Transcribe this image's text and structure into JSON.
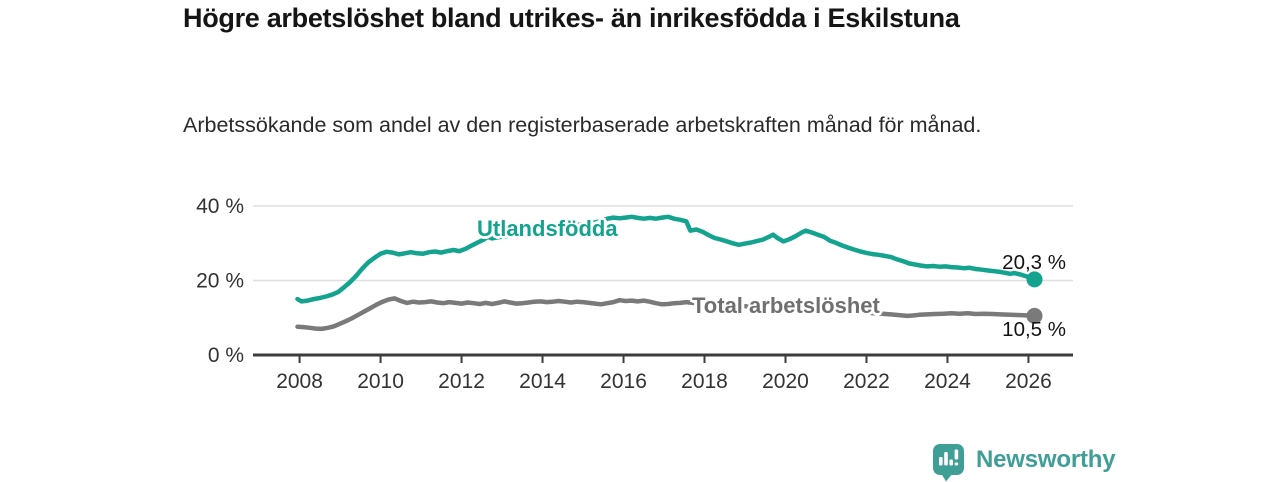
{
  "header": {
    "title": "Högre arbetslöshet bland utrikes- än inrikesfödda i Eskilstuna",
    "subtitle": "Arbetssökande som andel av den registerbaserade arbetskraften månad för månad."
  },
  "chart_data": {
    "type": "line",
    "title": "Högre arbetslöshet bland utrikes- än inrikesfödda i Eskilstuna",
    "subtitle": "Arbetssökande som andel av den registerbaserade arbetskraften månad för månad.",
    "xlabel": "",
    "ylabel": "",
    "x_unit": "year (monthly data)",
    "y_unit": "%",
    "xlim": [
      2006.85,
      2027.1
    ],
    "ylim": [
      0,
      44.3
    ],
    "grid": "horizontal",
    "legend_position": "inline-labels",
    "yticks": [
      {
        "value": 0,
        "label": "0 %"
      },
      {
        "value": 20,
        "label": "20 %"
      },
      {
        "value": 40,
        "label": "40 %"
      }
    ],
    "xticks": [
      {
        "value": 2008,
        "label": "2008"
      },
      {
        "value": 2010,
        "label": "2010"
      },
      {
        "value": 2012,
        "label": "2012"
      },
      {
        "value": 2014,
        "label": "2014"
      },
      {
        "value": 2016,
        "label": "2016"
      },
      {
        "value": 2018,
        "label": "2018"
      },
      {
        "value": 2020,
        "label": "2020"
      },
      {
        "value": 2022,
        "label": "2022"
      },
      {
        "value": 2024,
        "label": "2024"
      },
      {
        "value": 2026,
        "label": "2026"
      }
    ],
    "series": [
      {
        "name": "Utlandsfödda",
        "color": "#14a38f",
        "end_label": "20,3 %",
        "end_value": 20.3,
        "points": [
          [
            2007.95,
            15.0
          ],
          [
            2008.05,
            14.4
          ],
          [
            2008.2,
            14.6
          ],
          [
            2008.35,
            15.0
          ],
          [
            2008.5,
            15.3
          ],
          [
            2008.65,
            15.7
          ],
          [
            2008.8,
            16.2
          ],
          [
            2008.95,
            16.9
          ],
          [
            2009.1,
            18.2
          ],
          [
            2009.25,
            19.6
          ],
          [
            2009.4,
            21.3
          ],
          [
            2009.55,
            23.2
          ],
          [
            2009.7,
            24.9
          ],
          [
            2009.85,
            26.1
          ],
          [
            2010.0,
            27.2
          ],
          [
            2010.15,
            27.7
          ],
          [
            2010.3,
            27.5
          ],
          [
            2010.45,
            27.0
          ],
          [
            2010.6,
            27.3
          ],
          [
            2010.75,
            27.6
          ],
          [
            2010.9,
            27.3
          ],
          [
            2011.05,
            27.2
          ],
          [
            2011.2,
            27.6
          ],
          [
            2011.35,
            27.8
          ],
          [
            2011.5,
            27.5
          ],
          [
            2011.65,
            27.9
          ],
          [
            2011.8,
            28.2
          ],
          [
            2011.95,
            27.9
          ],
          [
            2012.1,
            28.5
          ],
          [
            2012.25,
            29.4
          ],
          [
            2012.4,
            30.2
          ],
          [
            2012.55,
            31.0
          ],
          [
            2012.65,
            31.7
          ],
          [
            2012.75,
            31.3
          ],
          [
            2012.9,
            31.6
          ],
          [
            2013.1,
            31.9
          ],
          [
            2013.3,
            32.3
          ],
          [
            2013.5,
            32.6
          ],
          [
            2013.7,
            33.0
          ],
          [
            2013.9,
            33.3
          ],
          [
            2014.1,
            33.7
          ],
          [
            2014.3,
            34.0
          ],
          [
            2014.5,
            34.4
          ],
          [
            2014.7,
            34.7
          ],
          [
            2014.9,
            35.0
          ],
          [
            2015.1,
            35.3
          ],
          [
            2015.3,
            35.6
          ],
          [
            2015.45,
            35.9
          ],
          [
            2015.6,
            36.6
          ],
          [
            2015.75,
            36.9
          ],
          [
            2015.9,
            36.7
          ],
          [
            2016.05,
            36.9
          ],
          [
            2016.2,
            37.1
          ],
          [
            2016.35,
            36.8
          ],
          [
            2016.5,
            36.6
          ],
          [
            2016.65,
            36.8
          ],
          [
            2016.8,
            36.6
          ],
          [
            2016.95,
            36.9
          ],
          [
            2017.1,
            37.1
          ],
          [
            2017.25,
            36.6
          ],
          [
            2017.4,
            36.3
          ],
          [
            2017.55,
            35.9
          ],
          [
            2017.65,
            33.4
          ],
          [
            2017.8,
            33.7
          ],
          [
            2017.95,
            33.1
          ],
          [
            2018.1,
            32.2
          ],
          [
            2018.25,
            31.4
          ],
          [
            2018.4,
            31.0
          ],
          [
            2018.55,
            30.5
          ],
          [
            2018.7,
            30.0
          ],
          [
            2018.85,
            29.6
          ],
          [
            2019.0,
            29.9
          ],
          [
            2019.15,
            30.2
          ],
          [
            2019.3,
            30.6
          ],
          [
            2019.45,
            31.0
          ],
          [
            2019.6,
            31.8
          ],
          [
            2019.7,
            32.3
          ],
          [
            2019.8,
            31.4
          ],
          [
            2019.95,
            30.5
          ],
          [
            2020.1,
            31.1
          ],
          [
            2020.25,
            31.9
          ],
          [
            2020.4,
            32.9
          ],
          [
            2020.5,
            33.4
          ],
          [
            2020.65,
            32.9
          ],
          [
            2020.8,
            32.3
          ],
          [
            2020.95,
            31.7
          ],
          [
            2021.1,
            30.7
          ],
          [
            2021.25,
            30.1
          ],
          [
            2021.4,
            29.4
          ],
          [
            2021.55,
            28.8
          ],
          [
            2021.7,
            28.3
          ],
          [
            2021.85,
            27.8
          ],
          [
            2022.0,
            27.4
          ],
          [
            2022.15,
            27.1
          ],
          [
            2022.3,
            26.9
          ],
          [
            2022.45,
            26.6
          ],
          [
            2022.6,
            26.3
          ],
          [
            2022.75,
            25.7
          ],
          [
            2022.9,
            25.2
          ],
          [
            2023.05,
            24.6
          ],
          [
            2023.2,
            24.3
          ],
          [
            2023.35,
            24.0
          ],
          [
            2023.5,
            23.8
          ],
          [
            2023.65,
            23.9
          ],
          [
            2023.8,
            23.7
          ],
          [
            2023.95,
            23.8
          ],
          [
            2024.1,
            23.6
          ],
          [
            2024.25,
            23.5
          ],
          [
            2024.4,
            23.3
          ],
          [
            2024.55,
            23.4
          ],
          [
            2024.7,
            23.1
          ],
          [
            2024.85,
            22.9
          ],
          [
            2025.0,
            22.7
          ],
          [
            2025.15,
            22.5
          ],
          [
            2025.3,
            22.3
          ],
          [
            2025.45,
            22.0
          ],
          [
            2025.55,
            21.8
          ],
          [
            2025.65,
            22.0
          ],
          [
            2025.8,
            21.6
          ],
          [
            2025.95,
            21.1
          ],
          [
            2026.05,
            20.7
          ],
          [
            2026.15,
            20.3
          ]
        ]
      },
      {
        "name": "Total arbetslöshet",
        "color": "#7a7a7a",
        "label_color": "#6f6f6f",
        "end_label": "10,5 %",
        "end_value": 10.5,
        "points": [
          [
            2007.95,
            7.6
          ],
          [
            2008.1,
            7.5
          ],
          [
            2008.25,
            7.3
          ],
          [
            2008.4,
            7.1
          ],
          [
            2008.55,
            7.0
          ],
          [
            2008.7,
            7.3
          ],
          [
            2008.85,
            7.7
          ],
          [
            2009.0,
            8.4
          ],
          [
            2009.15,
            9.1
          ],
          [
            2009.3,
            9.9
          ],
          [
            2009.45,
            10.8
          ],
          [
            2009.6,
            11.7
          ],
          [
            2009.75,
            12.6
          ],
          [
            2009.9,
            13.5
          ],
          [
            2010.05,
            14.3
          ],
          [
            2010.2,
            14.9
          ],
          [
            2010.35,
            15.2
          ],
          [
            2010.5,
            14.5
          ],
          [
            2010.65,
            14.0
          ],
          [
            2010.8,
            14.3
          ],
          [
            2010.95,
            14.1
          ],
          [
            2011.1,
            14.2
          ],
          [
            2011.25,
            14.4
          ],
          [
            2011.4,
            14.1
          ],
          [
            2011.55,
            13.9
          ],
          [
            2011.7,
            14.2
          ],
          [
            2011.85,
            14.0
          ],
          [
            2012.0,
            13.8
          ],
          [
            2012.15,
            14.1
          ],
          [
            2012.3,
            13.9
          ],
          [
            2012.45,
            13.7
          ],
          [
            2012.6,
            14.0
          ],
          [
            2012.75,
            13.7
          ],
          [
            2012.9,
            14.0
          ],
          [
            2013.05,
            14.4
          ],
          [
            2013.2,
            14.1
          ],
          [
            2013.35,
            13.8
          ],
          [
            2013.5,
            13.9
          ],
          [
            2013.65,
            14.1
          ],
          [
            2013.8,
            14.3
          ],
          [
            2013.95,
            14.4
          ],
          [
            2014.1,
            14.2
          ],
          [
            2014.25,
            14.3
          ],
          [
            2014.4,
            14.5
          ],
          [
            2014.55,
            14.3
          ],
          [
            2014.7,
            14.1
          ],
          [
            2014.85,
            14.3
          ],
          [
            2015.0,
            14.2
          ],
          [
            2015.15,
            14.0
          ],
          [
            2015.3,
            13.8
          ],
          [
            2015.45,
            13.6
          ],
          [
            2015.6,
            13.9
          ],
          [
            2015.75,
            14.2
          ],
          [
            2015.9,
            14.7
          ],
          [
            2016.05,
            14.5
          ],
          [
            2016.2,
            14.6
          ],
          [
            2016.35,
            14.4
          ],
          [
            2016.5,
            14.6
          ],
          [
            2016.65,
            14.3
          ],
          [
            2016.8,
            13.9
          ],
          [
            2016.95,
            13.6
          ],
          [
            2017.1,
            13.7
          ],
          [
            2017.25,
            13.9
          ],
          [
            2017.4,
            14.0
          ],
          [
            2017.55,
            14.2
          ],
          [
            2017.7,
            14.0
          ],
          [
            2017.85,
            13.9
          ],
          [
            2018.0,
            13.8
          ],
          [
            2018.2,
            13.9
          ],
          [
            2018.4,
            13.7
          ],
          [
            2018.6,
            13.5
          ],
          [
            2018.8,
            13.3
          ],
          [
            2019.0,
            13.1
          ],
          [
            2019.2,
            12.9
          ],
          [
            2019.4,
            12.8
          ],
          [
            2019.6,
            12.7
          ],
          [
            2019.8,
            12.9
          ],
          [
            2020.0,
            13.1
          ],
          [
            2020.2,
            13.5
          ],
          [
            2020.4,
            13.8
          ],
          [
            2020.6,
            13.7
          ],
          [
            2020.8,
            13.4
          ],
          [
            2021.0,
            13.1
          ],
          [
            2021.2,
            12.8
          ],
          [
            2021.4,
            12.4
          ],
          [
            2021.6,
            12.1
          ],
          [
            2021.8,
            11.8
          ],
          [
            2022.0,
            11.4
          ],
          [
            2022.2,
            11.2
          ],
          [
            2022.4,
            11.1
          ],
          [
            2022.6,
            10.9
          ],
          [
            2022.8,
            10.7
          ],
          [
            2023.0,
            10.5
          ],
          [
            2023.15,
            10.6
          ],
          [
            2023.3,
            10.8
          ],
          [
            2023.5,
            10.9
          ],
          [
            2023.7,
            11.0
          ],
          [
            2023.9,
            11.1
          ],
          [
            2024.1,
            11.2
          ],
          [
            2024.3,
            11.1
          ],
          [
            2024.5,
            11.2
          ],
          [
            2024.7,
            11.0
          ],
          [
            2024.9,
            11.1
          ],
          [
            2025.1,
            11.0
          ],
          [
            2025.3,
            10.9
          ],
          [
            2025.55,
            10.8
          ],
          [
            2025.8,
            10.7
          ],
          [
            2026.0,
            10.6
          ],
          [
            2026.15,
            10.5
          ]
        ]
      }
    ]
  },
  "colors": {
    "accent_teal": "#14a38f",
    "series_gray": "#7a7a7a",
    "axis": "#3c3c3c",
    "gridline": "#dfdfdf",
    "text_dark": "#151515"
  },
  "footer": {
    "brand": "Newsworthy",
    "brand_color": "#3f9f97"
  }
}
